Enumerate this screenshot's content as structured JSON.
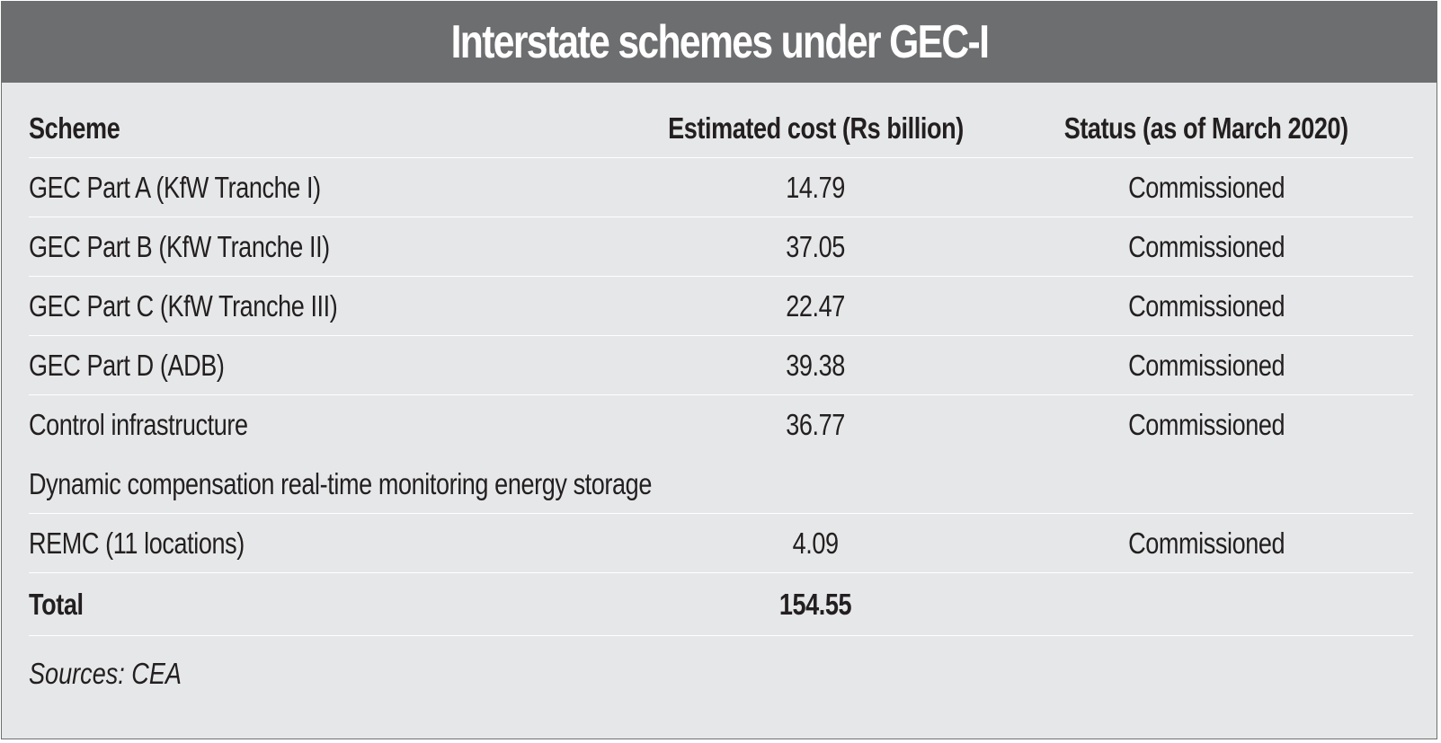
{
  "title": "Interstate schemes under GEC-I",
  "table": {
    "headers": {
      "scheme": "Scheme",
      "cost": "Estimated cost (Rs billion)",
      "status": "Status (as of March 2020)"
    },
    "rows": [
      {
        "scheme": "GEC Part A (KfW Tranche I)",
        "cost": "14.79",
        "status": "Commissioned"
      },
      {
        "scheme": "GEC Part B (KfW Tranche II)",
        "cost": "37.05",
        "status": "Commissioned"
      },
      {
        "scheme": "GEC Part C (KfW Tranche III)",
        "cost": "22.47",
        "status": "Commissioned"
      },
      {
        "scheme": "GEC Part D (ADB)",
        "cost": "39.38",
        "status": "Commissioned"
      },
      {
        "scheme": "Control infrastructure",
        "cost": "36.77",
        "status": "Commissioned"
      },
      {
        "scheme": "Dynamic compensation real-time monitoring energy storage",
        "cost": "",
        "status": ""
      },
      {
        "scheme": "REMC (11 locations)",
        "cost": "4.09",
        "status": "Commissioned"
      }
    ],
    "total": {
      "label": "Total",
      "cost": "154.55"
    }
  },
  "source": "Sources: CEA"
}
